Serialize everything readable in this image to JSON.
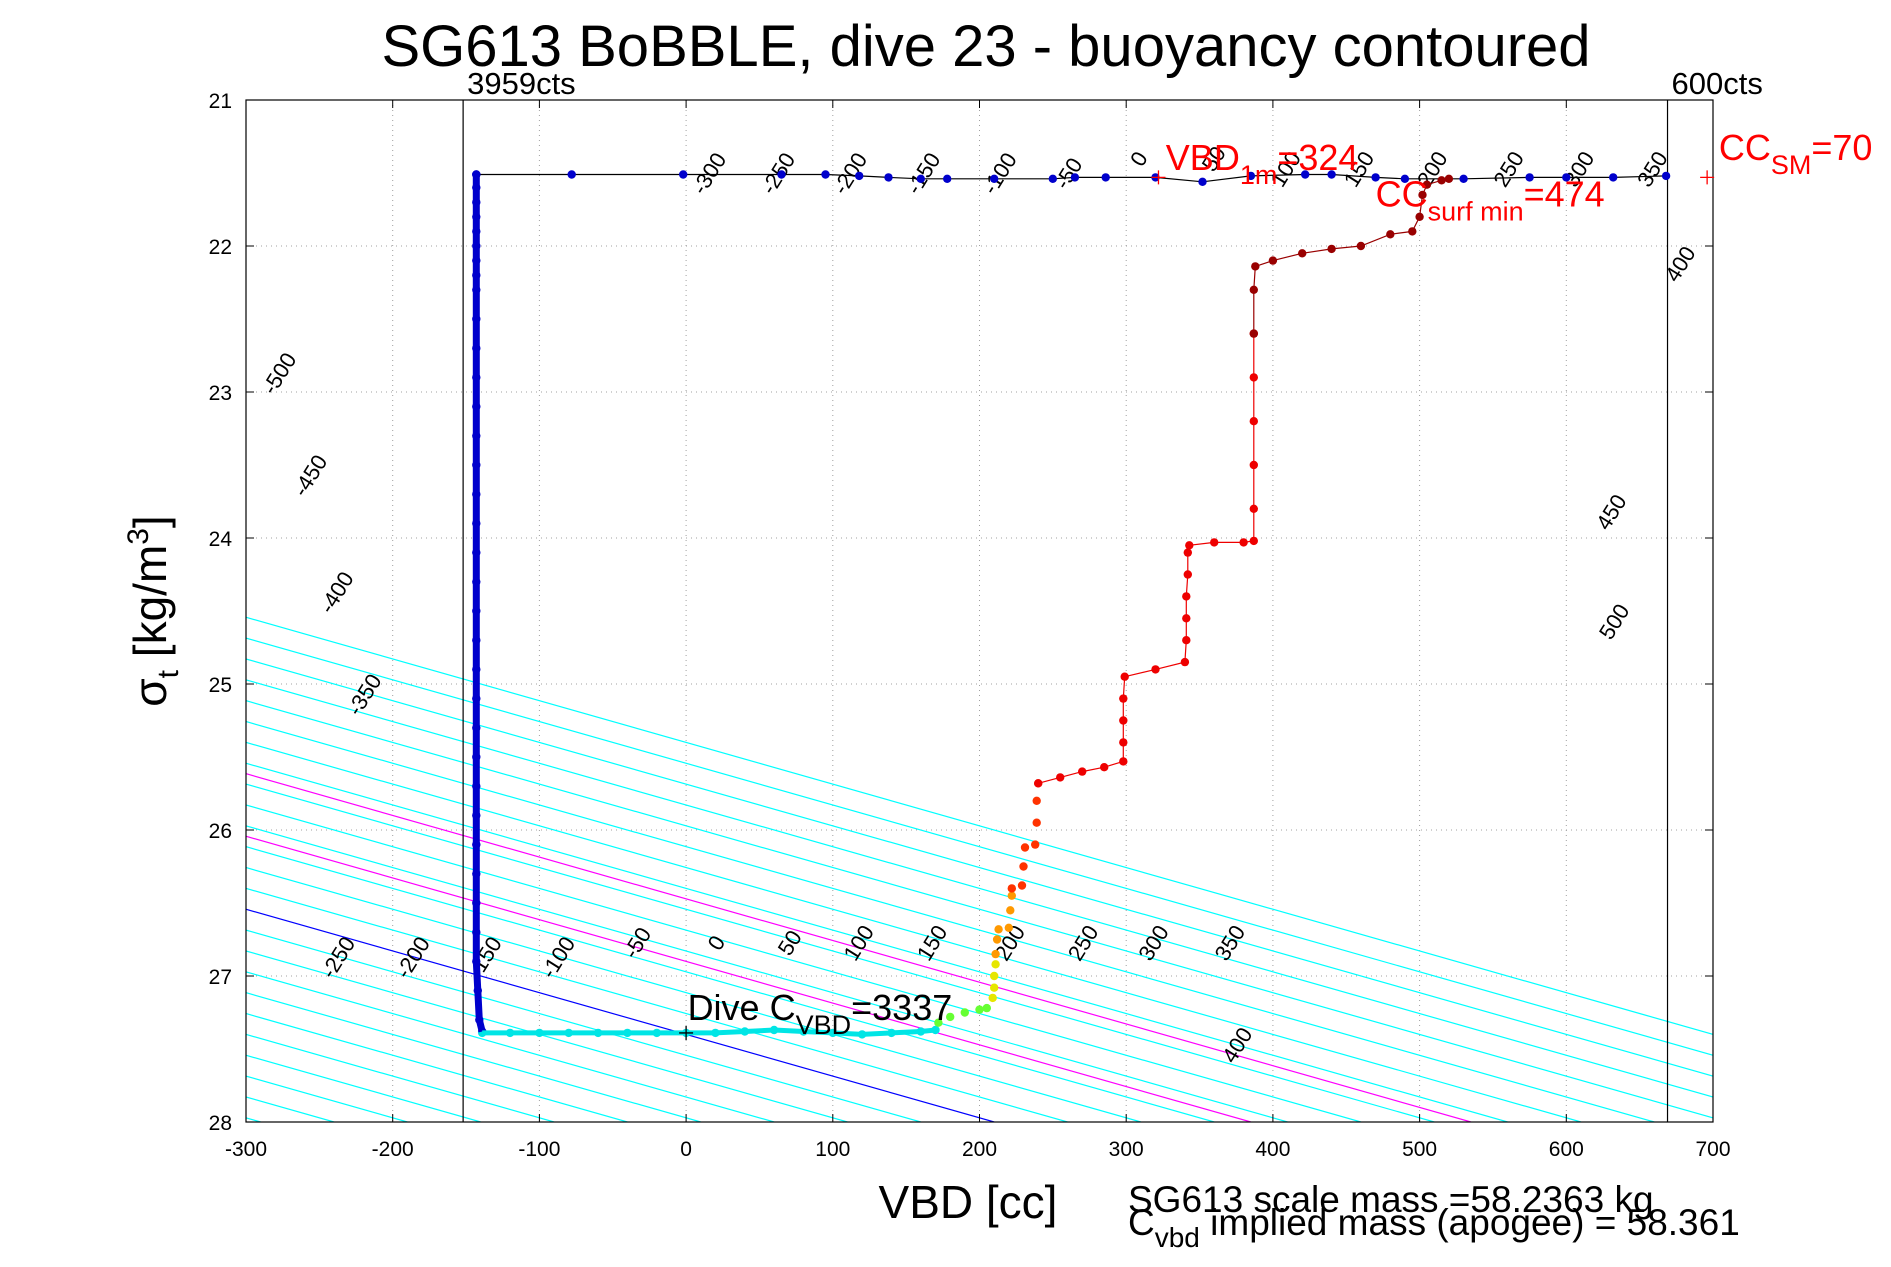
{
  "chart_data": {
    "type": "scatter",
    "title": "SG613 BoBBLE, dive 23 - buoyancy contoured",
    "xlabel": "VBD [cc]",
    "ylabel_main": "σ",
    "ylabel_sub": "t",
    "ylabel_unit_a": " [kg/m",
    "ylabel_unit_sup": "3",
    "ylabel_unit_b": "]",
    "xlim": [
      -300,
      700
    ],
    "ylim": [
      21,
      28
    ],
    "y_reversed": true,
    "xticks": [
      -300,
      -200,
      -100,
      0,
      100,
      200,
      300,
      400,
      500,
      600,
      700
    ],
    "yticks": [
      21,
      22,
      23,
      24,
      25,
      26,
      27,
      28
    ],
    "grid": true,
    "vertical_lines": [
      {
        "x": -152,
        "label": "3959cts"
      },
      {
        "x": 669,
        "label": "600cts"
      }
    ],
    "contours": {
      "color": "#00ffff",
      "levels": [
        -700,
        -650,
        -600,
        -550,
        -500,
        -450,
        -400,
        -350,
        -300,
        -250,
        -200,
        -150,
        -100,
        -50,
        0,
        50,
        100,
        150,
        200,
        250,
        300,
        350,
        400,
        450,
        500,
        550,
        600,
        650,
        700
      ],
      "zero_line_color": "#0000ff",
      "special_lines": [
        {
          "level": 175,
          "color": "#ff00ff"
        },
        {
          "level": 325,
          "color": "#ff00ff"
        }
      ],
      "labels": [
        {
          "text": "-500",
          "x": -273,
          "y": 22.9
        },
        {
          "text": "-450",
          "x": -252,
          "y": 23.6
        },
        {
          "text": "-400",
          "x": -234,
          "y": 24.4
        },
        {
          "text": "-350",
          "x": -215,
          "y": 25.1
        },
        {
          "text": "-250",
          "x": -233,
          "y": 26.9
        },
        {
          "text": "-200",
          "x": -182,
          "y": 26.9
        },
        {
          "text": "-150",
          "x": -133,
          "y": 26.9
        },
        {
          "text": "-100",
          "x": -83,
          "y": 26.9
        },
        {
          "text": "-50",
          "x": -29,
          "y": 26.8
        },
        {
          "text": "0",
          "x": 25,
          "y": 26.8
        },
        {
          "text": "50",
          "x": 75,
          "y": 26.8
        },
        {
          "text": "100",
          "x": 122,
          "y": 26.8
        },
        {
          "text": "150",
          "x": 172,
          "y": 26.8
        },
        {
          "text": "200",
          "x": 225,
          "y": 26.8
        },
        {
          "text": "250",
          "x": 275,
          "y": 26.8
        },
        {
          "text": "300",
          "x": 323,
          "y": 26.8
        },
        {
          "text": "350",
          "x": 375,
          "y": 26.8
        },
        {
          "text": "400",
          "x": 380,
          "y": 27.5
        },
        {
          "text": "-300",
          "x": 20,
          "y": 21.53
        },
        {
          "text": "-250",
          "x": 67,
          "y": 21.53
        },
        {
          "text": "-200",
          "x": 116,
          "y": 21.53
        },
        {
          "text": "-150",
          "x": 166,
          "y": 21.53
        },
        {
          "text": "-100",
          "x": 218,
          "y": 21.53
        },
        {
          "text": "-50",
          "x": 265,
          "y": 21.53
        },
        {
          "text": "0",
          "x": 313,
          "y": 21.43
        },
        {
          "text": "50",
          "x": 364,
          "y": 21.43
        },
        {
          "text": "100",
          "x": 413,
          "y": 21.5
        },
        {
          "text": "150",
          "x": 463,
          "y": 21.5
        },
        {
          "text": "200",
          "x": 513,
          "y": 21.5
        },
        {
          "text": "250",
          "x": 565,
          "y": 21.5
        },
        {
          "text": "300",
          "x": 613,
          "y": 21.5
        },
        {
          "text": "350",
          "x": 663,
          "y": 21.5
        },
        {
          "text": "400",
          "x": 682,
          "y": 22.15
        },
        {
          "text": "450",
          "x": 635,
          "y": 23.85
        },
        {
          "text": "500",
          "x": 637,
          "y": 24.6
        }
      ]
    },
    "series": [
      {
        "name": "climb",
        "color": "#0000cc",
        "connect": true,
        "points": [
          [
            -143,
            21.51
          ],
          [
            -78,
            21.51
          ],
          [
            -2,
            21.51
          ],
          [
            65,
            21.51
          ],
          [
            95,
            21.51
          ],
          [
            118,
            21.52
          ],
          [
            138,
            21.53
          ],
          [
            160,
            21.54
          ],
          [
            178,
            21.54
          ],
          [
            210,
            21.54
          ],
          [
            250,
            21.54
          ],
          [
            265,
            21.53
          ],
          [
            286,
            21.53
          ],
          [
            320,
            21.53
          ],
          [
            352,
            21.56
          ],
          [
            385,
            21.52
          ],
          [
            422,
            21.51
          ],
          [
            440,
            21.51
          ],
          [
            470,
            21.53
          ],
          [
            490,
            21.54
          ],
          [
            530,
            21.54
          ],
          [
            575,
            21.53
          ],
          [
            600,
            21.53
          ],
          [
            632,
            21.53
          ],
          [
            668,
            21.52
          ]
        ]
      },
      {
        "name": "descent",
        "color": "#0000cc",
        "connect": false,
        "points": [
          [
            -143,
            21.51
          ],
          [
            -143,
            21.6
          ],
          [
            -143,
            21.7
          ],
          [
            -143,
            21.8
          ],
          [
            -143,
            21.9
          ],
          [
            -143,
            22.0
          ],
          [
            -143,
            22.1
          ],
          [
            -143,
            22.2
          ],
          [
            -143,
            22.3
          ],
          [
            -143,
            22.5
          ],
          [
            -143,
            22.7
          ],
          [
            -143,
            22.9
          ],
          [
            -143,
            23.1
          ],
          [
            -143,
            23.3
          ],
          [
            -143,
            23.5
          ],
          [
            -143,
            23.7
          ],
          [
            -143,
            23.9
          ],
          [
            -143,
            24.1
          ],
          [
            -143,
            24.3
          ],
          [
            -143,
            24.5
          ],
          [
            -143,
            24.7
          ],
          [
            -143,
            24.9
          ],
          [
            -143,
            25.1
          ],
          [
            -143,
            25.3
          ],
          [
            -143,
            25.5
          ],
          [
            -143,
            25.7
          ],
          [
            -143,
            25.9
          ],
          [
            -143,
            26.1
          ],
          [
            -143,
            26.3
          ],
          [
            -143,
            26.5
          ],
          [
            -143,
            26.7
          ],
          [
            -143,
            26.9
          ],
          [
            -142,
            27.1
          ],
          [
            -141,
            27.3
          ],
          [
            -139,
            27.38
          ]
        ]
      },
      {
        "name": "apogee",
        "color": "#00e5e5",
        "connect": false,
        "points": [
          [
            -139,
            27.39
          ],
          [
            -120,
            27.39
          ],
          [
            -100,
            27.39
          ],
          [
            -80,
            27.39
          ],
          [
            -60,
            27.39
          ],
          [
            -40,
            27.39
          ],
          [
            -20,
            27.39
          ],
          [
            0,
            27.39
          ],
          [
            20,
            27.39
          ],
          [
            40,
            27.38
          ],
          [
            60,
            27.37
          ],
          [
            80,
            27.38
          ],
          [
            100,
            27.39
          ],
          [
            120,
            27.4
          ],
          [
            140,
            27.39
          ],
          [
            160,
            27.38
          ],
          [
            170,
            27.37
          ]
        ]
      },
      {
        "name": "early-climb",
        "color": "#66ff33",
        "connect": false,
        "points": [
          [
            172,
            27.32
          ],
          [
            180,
            27.28
          ],
          [
            190,
            27.25
          ],
          [
            200,
            27.23
          ],
          [
            205,
            27.22
          ]
        ]
      },
      {
        "name": "yellow",
        "color": "#e6e600",
        "connect": false,
        "points": [
          [
            209,
            27.15
          ],
          [
            210,
            27.08
          ],
          [
            210,
            27.0
          ],
          [
            211,
            26.92
          ]
        ]
      },
      {
        "name": "orange",
        "color": "#ff9900",
        "connect": false,
        "points": [
          [
            211,
            26.85
          ],
          [
            212,
            26.75
          ],
          [
            213,
            26.68
          ],
          [
            220,
            26.67
          ],
          [
            221,
            26.55
          ],
          [
            222,
            26.45
          ]
        ]
      },
      {
        "name": "red-orange",
        "color": "#ff3300",
        "connect": false,
        "points": [
          [
            222,
            26.4
          ],
          [
            229,
            26.38
          ],
          [
            230,
            26.25
          ],
          [
            231,
            26.12
          ],
          [
            238,
            26.1
          ],
          [
            239,
            25.95
          ],
          [
            239,
            25.8
          ],
          [
            240,
            25.68
          ]
        ]
      },
      {
        "name": "red",
        "color": "#ee0000",
        "connect": true,
        "points": [
          [
            240,
            25.68
          ],
          [
            255,
            25.64
          ],
          [
            270,
            25.6
          ],
          [
            285,
            25.57
          ],
          [
            298,
            25.53
          ],
          [
            298,
            25.4
          ],
          [
            298,
            25.25
          ],
          [
            298,
            25.1
          ],
          [
            299,
            24.95
          ],
          [
            320,
            24.9
          ],
          [
            340,
            24.85
          ],
          [
            341,
            24.7
          ],
          [
            341,
            24.55
          ],
          [
            341,
            24.4
          ],
          [
            342,
            24.25
          ],
          [
            342,
            24.1
          ],
          [
            343,
            24.05
          ],
          [
            360,
            24.03
          ],
          [
            380,
            24.03
          ],
          [
            387,
            24.02
          ],
          [
            387,
            23.8
          ],
          [
            387,
            23.5
          ],
          [
            387,
            23.2
          ],
          [
            387,
            22.9
          ],
          [
            387,
            22.6
          ]
        ]
      },
      {
        "name": "dark-red",
        "color": "#990000",
        "connect": true,
        "points": [
          [
            387,
            22.6
          ],
          [
            387,
            22.3
          ],
          [
            388,
            22.14
          ],
          [
            400,
            22.1
          ],
          [
            420,
            22.05
          ],
          [
            440,
            22.02
          ],
          [
            460,
            22.0
          ],
          [
            480,
            21.92
          ],
          [
            495,
            21.9
          ],
          [
            500,
            21.8
          ],
          [
            502,
            21.65
          ],
          [
            505,
            21.58
          ],
          [
            515,
            21.55
          ],
          [
            520,
            21.54
          ]
        ]
      }
    ],
    "annotations": [
      {
        "main": "VBD",
        "sub": "1m",
        "suffix": "=324",
        "color": "#ff0000",
        "x": 327,
        "y": 21.48
      },
      {
        "main": "CC",
        "sub": "surf min",
        "suffix": "=474",
        "color": "#ff0000",
        "x": 470,
        "y": 21.73
      },
      {
        "main": "CC",
        "sub": "SM",
        "suffix": "=70",
        "color": "#ff0000",
        "x": 704,
        "y": 21.41
      },
      {
        "main": "Dive C",
        "sub": "VBD",
        "suffix": "=3337",
        "color": "#000000",
        "x": 1,
        "y": 27.3
      }
    ],
    "markers": [
      {
        "x": 322,
        "y": 21.53,
        "color": "#ff0000"
      },
      {
        "x": 696,
        "y": 21.53,
        "color": "#ff0000"
      },
      {
        "x": 0,
        "y": 27.39,
        "color": "#000000"
      }
    ],
    "footer": {
      "line1": "SG613 scale mass =58.2363 kg",
      "line2_main": "C",
      "line2_sub": "vbd",
      "line2_rest": " implied mass (apogee) = 58.361"
    }
  }
}
